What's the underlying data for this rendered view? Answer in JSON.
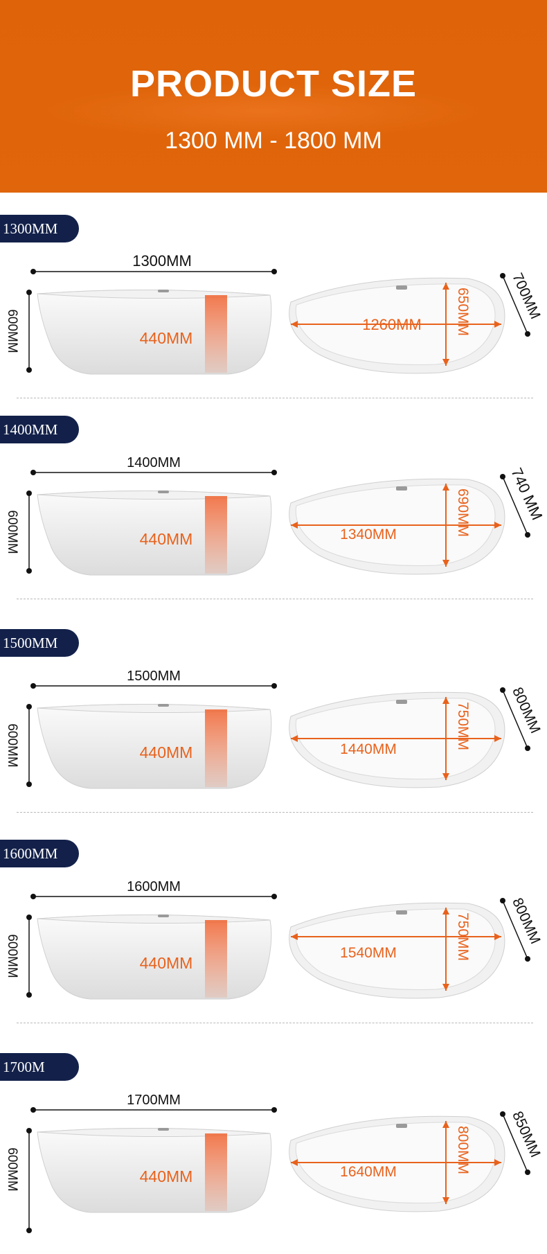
{
  "header": {
    "title": "PRODUCT SIZE",
    "subtitle": "1300 MM - 1800 MM"
  },
  "colors": {
    "header_bg": "#df6409",
    "badge_bg": "#13214a",
    "measure_orange": "#e8621c",
    "dimension_line": "#111111"
  },
  "sections": [
    {
      "badge": "1300MM",
      "length": "1300MM",
      "height": "600MM",
      "depth": "440MM",
      "inner_length": "1260MM",
      "inner_width": "650MM",
      "width": "700MM"
    },
    {
      "badge": "1400MM",
      "length": "1400MM",
      "height": "600MM",
      "depth": "440MM",
      "inner_length": "1340MM",
      "inner_width": "690MM",
      "width": "740 MM"
    },
    {
      "badge": "1500MM",
      "length": "1500MM",
      "height": "600MM",
      "depth": "440MM",
      "inner_length": "1440MM",
      "inner_width": "750MM",
      "width": "800MM"
    },
    {
      "badge": "1600MM",
      "length": "1600MM",
      "height": "600MM",
      "depth": "440MM",
      "inner_length": "1540MM",
      "inner_width": "750MM",
      "width": "800MM"
    },
    {
      "badge": "1700M",
      "length": "1700MM",
      "height": "600MM",
      "depth": "440MM",
      "inner_length": "1640MM",
      "inner_width": "800MM",
      "width": "850MM"
    }
  ]
}
